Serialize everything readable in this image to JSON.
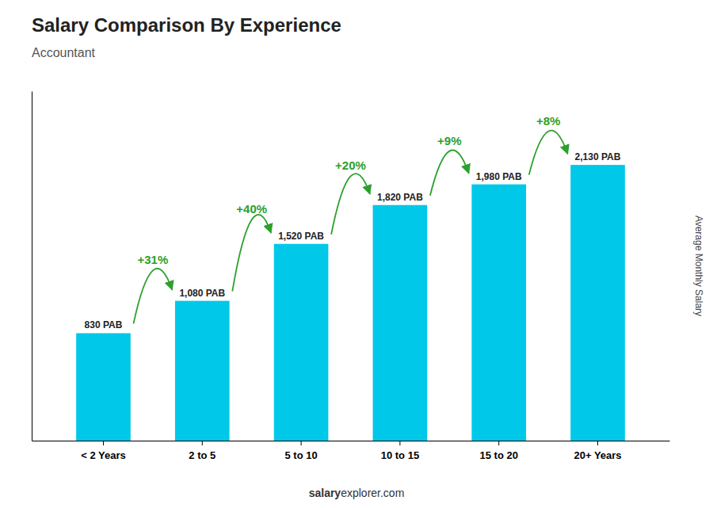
{
  "chart_data": {
    "type": "bar",
    "title": "Salary Comparison By Experience",
    "subtitle": "Accountant",
    "ylabel": "Average Monthly Salary",
    "categories": [
      "< 2 Years",
      "2 to 5",
      "5 to 10",
      "10 to 15",
      "15 to 20",
      "20+ Years"
    ],
    "values": [
      830,
      1080,
      1520,
      1820,
      1980,
      2130
    ],
    "value_labels": [
      "830 PAB",
      "1,080 PAB",
      "1,520 PAB",
      "1,820 PAB",
      "1,980 PAB",
      "2,130 PAB"
    ],
    "data_labels": true,
    "color": "#00c8e8",
    "annotations": [
      "+31%",
      "+40%",
      "+20%",
      "+9%",
      "+8%"
    ],
    "footer": [
      "salary",
      "explorer.com"
    ],
    "ylim": [
      0,
      2700
    ],
    "tick_labels": "x",
    "grid": false
  }
}
